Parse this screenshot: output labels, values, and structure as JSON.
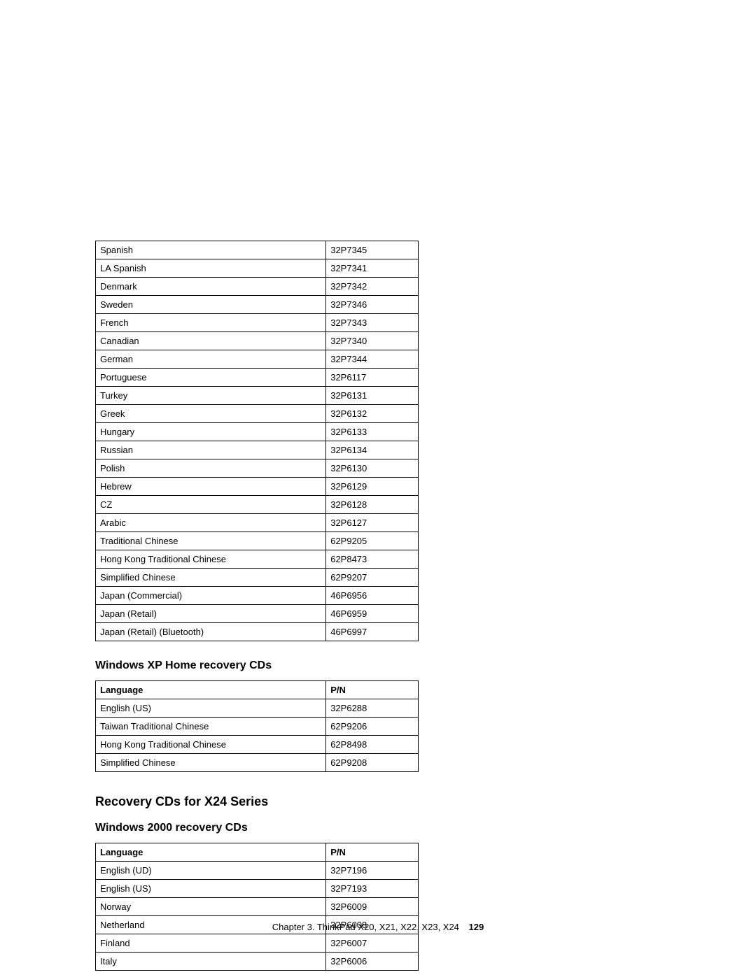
{
  "table1": {
    "rows": [
      [
        "Spanish",
        "32P7345"
      ],
      [
        "LA Spanish",
        "32P7341"
      ],
      [
        "Denmark",
        "32P7342"
      ],
      [
        "Sweden",
        "32P7346"
      ],
      [
        "French",
        "32P7343"
      ],
      [
        "Canadian",
        "32P7340"
      ],
      [
        "German",
        "32P7344"
      ],
      [
        "Portuguese",
        "32P6117"
      ],
      [
        "Turkey",
        "32P6131"
      ],
      [
        "Greek",
        "32P6132"
      ],
      [
        "Hungary",
        "32P6133"
      ],
      [
        "Russian",
        "32P6134"
      ],
      [
        "Polish",
        "32P6130"
      ],
      [
        "Hebrew",
        "32P6129"
      ],
      [
        "CZ",
        "32P6128"
      ],
      [
        "Arabic",
        "32P6127"
      ],
      [
        "Traditional Chinese",
        "62P9205"
      ],
      [
        "Hong Kong Traditional Chinese",
        "62P8473"
      ],
      [
        "Simplified Chinese",
        "62P9207"
      ],
      [
        "Japan (Commercial)",
        "46P6956"
      ],
      [
        "Japan (Retail)",
        "46P6959"
      ],
      [
        "Japan (Retail) (Bluetooth)",
        "46P6997"
      ]
    ]
  },
  "heading_xp_home": "Windows XP Home recovery CDs",
  "table2": {
    "header": [
      "Language",
      "P/N"
    ],
    "rows": [
      [
        "English (US)",
        "32P6288"
      ],
      [
        "Taiwan Traditional Chinese",
        "62P9206"
      ],
      [
        "Hong Kong Traditional Chinese",
        "62P8498"
      ],
      [
        "Simplified Chinese",
        "62P9208"
      ]
    ]
  },
  "heading_x24": "Recovery CDs for X24 Series",
  "heading_w2000": "Windows 2000 recovery CDs",
  "table3": {
    "header": [
      "Language",
      "P/N"
    ],
    "rows": [
      [
        "English (UD)",
        "32P7196"
      ],
      [
        "English (US)",
        "32P7193"
      ],
      [
        "Norway",
        "32P6009"
      ],
      [
        "Netherland",
        "32P6008"
      ],
      [
        "Finland",
        "32P6007"
      ],
      [
        "Italy",
        "32P6006"
      ]
    ]
  },
  "footer_text": "Chapter 3. ThinkPad X20, X21, X22, X23, X24",
  "footer_page": "129"
}
